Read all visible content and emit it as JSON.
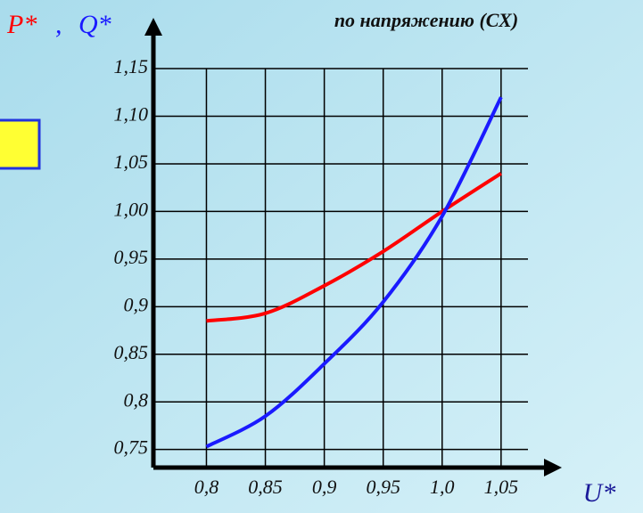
{
  "chart_data": {
    "type": "line",
    "title": "по напряжению (СХ)",
    "x_label": "U*",
    "y_label_separator": ",",
    "x": [
      0.8,
      0.85,
      0.9,
      0.95,
      1.0,
      1.05
    ],
    "series": [
      {
        "name": "P*",
        "color": "#ff0000",
        "values": [
          0.885,
          0.893,
          0.922,
          0.958,
          1.0,
          1.04
        ]
      },
      {
        "name": "Q*",
        "color": "#1a1aff",
        "values": [
          0.753,
          0.785,
          0.84,
          0.905,
          0.995,
          1.12
        ]
      }
    ],
    "xlim": [
      0.755,
      1.094
    ],
    "ylim": [
      0.731,
      1.194
    ],
    "xticks": [
      {
        "value": 0.8,
        "label": "0,8"
      },
      {
        "value": 0.85,
        "label": "0,85"
      },
      {
        "value": 0.9,
        "label": "0,9"
      },
      {
        "value": 0.95,
        "label": "0,95"
      },
      {
        "value": 1.0,
        "label": "1,0"
      },
      {
        "value": 1.05,
        "label": "1,05"
      }
    ],
    "yticks": [
      {
        "value": 0.75,
        "label": "0,75"
      },
      {
        "value": 0.8,
        "label": "0,8"
      },
      {
        "value": 0.85,
        "label": "0,85"
      },
      {
        "value": 0.9,
        "label": "0,9"
      },
      {
        "value": 0.95,
        "label": "0,95"
      },
      {
        "value": 1.0,
        "label": "1,00"
      },
      {
        "value": 1.05,
        "label": "1,05"
      },
      {
        "value": 1.1,
        "label": "1,10"
      },
      {
        "value": 1.15,
        "label": "1,15"
      }
    ],
    "grid": true
  }
}
